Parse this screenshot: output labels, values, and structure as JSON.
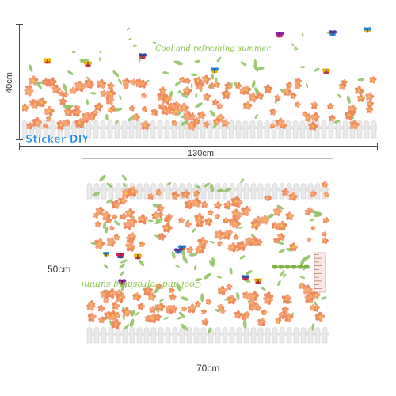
{
  "dimensions": {
    "top_height": "40cm",
    "top_width": "130cm",
    "sheet_height": "50cm",
    "sheet_width": "70cm"
  },
  "slogan": "Cool and refreshing summer",
  "logo": {
    "text": "Sticker DIY"
  },
  "colors": {
    "petal": "#f6a07a",
    "petal_dark": "#ee8a5e",
    "center": "#f4c542",
    "leaf": "#8bbf5a",
    "fence": "#e9e9e9",
    "fence_edge": "#c9c9c9",
    "logo_blue": "#1e88e5"
  }
}
